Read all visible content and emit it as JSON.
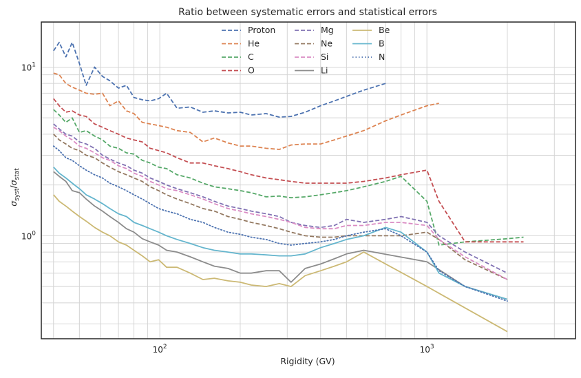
{
  "chart_data": {
    "type": "line",
    "title": "Ratio between systematic errors and statistical errors",
    "xlabel": "Rigidity (GV)",
    "ylabel": "σ_syst/σ_stat",
    "ylabel_parts": {
      "sigma1": "σ",
      "sub1": "syst",
      "slash": "/",
      "sigma2": "σ",
      "sub2": "stat"
    },
    "x_scale": "log",
    "y_scale": "log",
    "xlim": [
      36,
      3600
    ],
    "ylim": [
      0.245,
      18.5
    ],
    "grid": true,
    "legend_position": "top-center",
    "x_major_ticks": [
      {
        "value": 100,
        "base": "10",
        "exp": "2"
      },
      {
        "value": 1000,
        "base": "10",
        "exp": "3"
      }
    ],
    "y_major_ticks": [
      {
        "value": 1,
        "base": "10",
        "exp": "0"
      },
      {
        "value": 10,
        "base": "10",
        "exp": "1"
      }
    ],
    "x_minor_ticks": [
      40,
      50,
      60,
      70,
      80,
      90,
      200,
      300,
      400,
      500,
      600,
      700,
      800,
      900,
      2000,
      3000
    ],
    "y_minor_ticks": [
      0.3,
      0.4,
      0.5,
      0.6,
      0.7,
      0.8,
      0.9,
      2,
      3,
      4,
      5,
      6,
      7,
      8,
      9
    ],
    "x": [
      40,
      42,
      44.5,
      47,
      50,
      53,
      57,
      61,
      65,
      70,
      75,
      80,
      86,
      92,
      99,
      106,
      116,
      130,
      145,
      160,
      180,
      200,
      220,
      250,
      280,
      310,
      350,
      400,
      450,
      500,
      580,
      700,
      800,
      1000,
      1110,
      1390,
      2000,
      2300
    ],
    "series": [
      {
        "name": "Proton",
        "color": "#4c72b0",
        "dash": "6,3",
        "values": [
          12.5,
          14.0,
          11.5,
          14.0,
          10.5,
          7.8,
          10.0,
          8.8,
          8.3,
          7.5,
          7.8,
          6.6,
          6.4,
          6.3,
          6.5,
          7.0,
          5.7,
          5.8,
          5.4,
          5.5,
          5.35,
          5.4,
          5.2,
          5.3,
          5.05,
          5.1,
          5.4,
          5.9,
          6.3,
          6.7,
          7.3,
          8.0,
          null,
          null,
          null,
          null,
          null,
          null
        ]
      },
      {
        "name": "He",
        "color": "#dd8452",
        "dash": "6,3",
        "values": [
          9.2,
          9.0,
          8.0,
          7.6,
          7.3,
          7.0,
          6.9,
          7.0,
          5.9,
          6.3,
          5.5,
          5.3,
          4.7,
          4.6,
          4.5,
          4.4,
          4.2,
          4.1,
          3.6,
          3.8,
          3.55,
          3.4,
          3.4,
          3.3,
          3.25,
          3.45,
          3.5,
          3.5,
          3.7,
          3.9,
          4.2,
          4.8,
          5.2,
          5.9,
          6.1,
          null,
          null,
          null
        ]
      },
      {
        "name": "C",
        "color": "#55a868",
        "dash": "6,3",
        "values": [
          5.6,
          5.2,
          4.7,
          5.0,
          4.1,
          4.2,
          3.9,
          3.7,
          3.4,
          3.3,
          3.1,
          3.05,
          2.8,
          2.7,
          2.55,
          2.5,
          2.3,
          2.2,
          2.05,
          1.95,
          1.9,
          1.85,
          1.8,
          1.7,
          1.72,
          1.68,
          1.7,
          1.75,
          1.8,
          1.85,
          1.95,
          2.1,
          2.25,
          1.6,
          0.88,
          0.92,
          0.96,
          0.98
        ]
      },
      {
        "name": "O",
        "color": "#c44e52",
        "dash": "6,3",
        "values": [
          6.5,
          5.9,
          5.4,
          5.5,
          5.2,
          5.1,
          4.6,
          4.4,
          4.2,
          4.0,
          3.8,
          3.7,
          3.6,
          3.3,
          3.2,
          3.1,
          2.9,
          2.7,
          2.7,
          2.6,
          2.5,
          2.4,
          2.3,
          2.2,
          2.15,
          2.1,
          2.05,
          2.05,
          2.05,
          2.05,
          2.1,
          2.2,
          2.3,
          2.45,
          1.6,
          0.92,
          0.92,
          0.92
        ]
      },
      {
        "name": "Mg",
        "color": "#8172b3",
        "dash": "6,3",
        "values": [
          4.6,
          4.3,
          4.0,
          3.9,
          3.6,
          3.5,
          3.3,
          3.0,
          2.85,
          2.7,
          2.6,
          2.45,
          2.35,
          2.2,
          2.1,
          2.0,
          1.9,
          1.8,
          1.7,
          1.6,
          1.5,
          1.45,
          1.4,
          1.35,
          1.3,
          1.2,
          1.15,
          1.12,
          1.15,
          1.25,
          1.2,
          1.25,
          1.3,
          1.2,
          1.0,
          0.8,
          0.6,
          null
        ]
      },
      {
        "name": "Ne",
        "color": "#937860",
        "dash": "6,3",
        "values": [
          4.0,
          3.7,
          3.5,
          3.3,
          3.2,
          3.0,
          2.9,
          2.7,
          2.55,
          2.4,
          2.3,
          2.2,
          2.1,
          1.95,
          1.85,
          1.75,
          1.65,
          1.55,
          1.45,
          1.4,
          1.3,
          1.25,
          1.2,
          1.15,
          1.1,
          1.05,
          1.0,
          0.98,
          0.98,
          1.0,
          1.0,
          1.0,
          1.0,
          1.05,
          0.95,
          0.72,
          0.55,
          null
        ]
      },
      {
        "name": "Si",
        "color": "#da8bc3",
        "dash": "6,3",
        "values": [
          4.4,
          4.2,
          3.9,
          3.7,
          3.4,
          3.3,
          3.1,
          2.9,
          2.8,
          2.6,
          2.5,
          2.35,
          2.25,
          2.1,
          2.0,
          1.9,
          1.85,
          1.75,
          1.65,
          1.55,
          1.45,
          1.4,
          1.35,
          1.3,
          1.25,
          1.2,
          1.12,
          1.1,
          1.1,
          1.15,
          1.15,
          1.2,
          1.2,
          1.15,
          0.95,
          0.75,
          0.55,
          null
        ]
      },
      {
        "name": "Li",
        "color": "#8c8c8c",
        "dash": "",
        "values": [
          2.4,
          2.25,
          2.1,
          1.85,
          1.8,
          1.65,
          1.5,
          1.4,
          1.3,
          1.2,
          1.1,
          1.05,
          0.96,
          0.92,
          0.88,
          0.82,
          0.8,
          0.75,
          0.7,
          0.66,
          0.64,
          0.6,
          0.6,
          0.62,
          0.62,
          0.53,
          0.64,
          0.68,
          0.73,
          0.78,
          0.82,
          null,
          null,
          0.7,
          null,
          0.5,
          0.42,
          null
        ]
      },
      {
        "name": "Be",
        "color": "#ccb974",
        "dash": "",
        "values": [
          1.75,
          1.6,
          1.5,
          1.4,
          1.3,
          1.22,
          1.12,
          1.05,
          1.0,
          0.92,
          0.88,
          0.82,
          0.76,
          0.7,
          0.72,
          0.65,
          0.65,
          0.6,
          0.55,
          0.56,
          0.54,
          0.53,
          0.51,
          0.5,
          0.52,
          0.5,
          0.58,
          0.62,
          0.66,
          0.7,
          0.8,
          null,
          null,
          0.5,
          null,
          null,
          0.27,
          null
        ]
      },
      {
        "name": "B",
        "color": "#64b5cd",
        "dash": "",
        "values": [
          2.55,
          2.35,
          2.2,
          2.05,
          1.9,
          1.75,
          1.65,
          1.55,
          1.45,
          1.35,
          1.3,
          1.2,
          1.15,
          1.1,
          1.05,
          1.0,
          0.95,
          0.9,
          0.85,
          0.82,
          0.8,
          0.78,
          0.78,
          0.77,
          0.76,
          0.76,
          0.78,
          0.85,
          0.9,
          0.95,
          1.0,
          1.12,
          1.05,
          0.8,
          0.6,
          0.5,
          0.42,
          null
        ]
      },
      {
        "name": "N",
        "color": "#4c72b0",
        "dash": "1.5,3",
        "values": [
          3.4,
          3.2,
          2.9,
          2.8,
          2.6,
          2.45,
          2.3,
          2.2,
          2.05,
          1.95,
          1.85,
          1.75,
          1.65,
          1.55,
          1.45,
          1.4,
          1.35,
          1.25,
          1.2,
          1.12,
          1.05,
          1.02,
          0.98,
          0.95,
          0.9,
          0.88,
          0.9,
          0.92,
          0.95,
          1.0,
          1.05,
          1.1,
          1.0,
          0.8,
          0.62,
          0.5,
          0.41,
          null
        ]
      }
    ]
  }
}
